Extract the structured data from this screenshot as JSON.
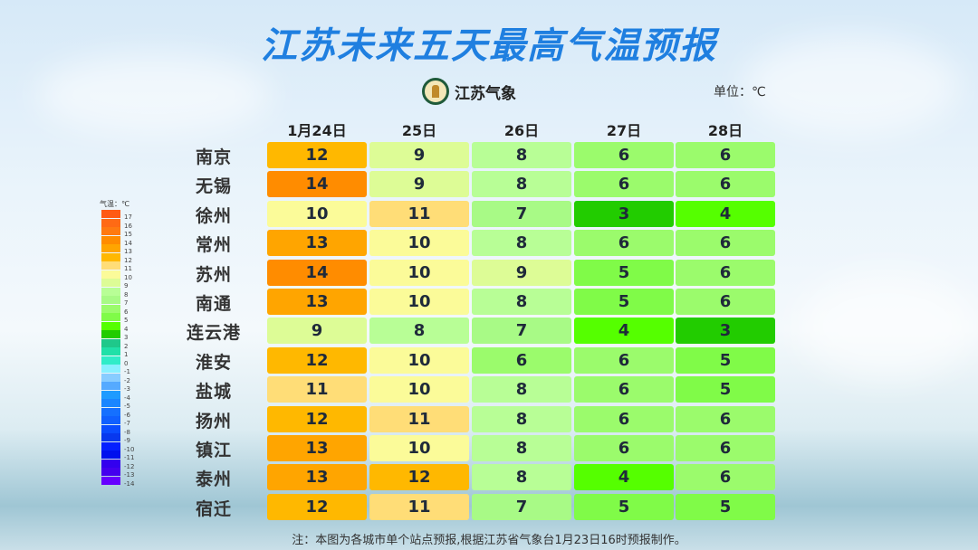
{
  "title": "江苏未来五天最高气温预报",
  "logo_text": "江苏气象",
  "unit": "单位：℃",
  "headers": [
    "1月24日",
    "25日",
    "26日",
    "27日",
    "28日"
  ],
  "rows": [
    {
      "city": "南京",
      "values": [
        12,
        9,
        8,
        6,
        6
      ]
    },
    {
      "city": "无锡",
      "values": [
        14,
        9,
        8,
        6,
        6
      ]
    },
    {
      "city": "徐州",
      "values": [
        10,
        11,
        7,
        3,
        4
      ]
    },
    {
      "city": "常州",
      "values": [
        13,
        10,
        8,
        6,
        6
      ]
    },
    {
      "city": "苏州",
      "values": [
        14,
        10,
        9,
        5,
        6
      ]
    },
    {
      "city": "南通",
      "values": [
        13,
        10,
        8,
        5,
        6
      ]
    },
    {
      "city": "连云港",
      "values": [
        9,
        8,
        7,
        4,
        3
      ]
    },
    {
      "city": "淮安",
      "values": [
        12,
        10,
        6,
        6,
        5
      ]
    },
    {
      "city": "盐城",
      "values": [
        11,
        10,
        8,
        6,
        5
      ]
    },
    {
      "city": "扬州",
      "values": [
        12,
        11,
        8,
        6,
        6
      ]
    },
    {
      "city": "镇江",
      "values": [
        13,
        10,
        8,
        6,
        6
      ]
    },
    {
      "city": "泰州",
      "values": [
        13,
        12,
        8,
        4,
        6
      ]
    },
    {
      "city": "宿迁",
      "values": [
        12,
        11,
        7,
        5,
        5
      ]
    }
  ],
  "legend": {
    "title": "气温：℃",
    "items": [
      {
        "value": 17,
        "color": "#ff5a14"
      },
      {
        "value": 16,
        "color": "#ff6a14"
      },
      {
        "value": 15,
        "color": "#ff7a10"
      },
      {
        "value": 14,
        "color": "#ff8c00"
      },
      {
        "value": 13,
        "color": "#ffa500"
      },
      {
        "value": 12,
        "color": "#ffb800"
      },
      {
        "value": 11,
        "color": "#ffdd77"
      },
      {
        "value": 10,
        "color": "#fbfb99"
      },
      {
        "value": 9,
        "color": "#ddfc96"
      },
      {
        "value": 8,
        "color": "#b8fe96"
      },
      {
        "value": 7,
        "color": "#a8fa86"
      },
      {
        "value": 6,
        "color": "#9bfb6c"
      },
      {
        "value": 5,
        "color": "#80fb48"
      },
      {
        "value": 4,
        "color": "#55ff00"
      },
      {
        "value": 3,
        "color": "#22cc00"
      },
      {
        "value": 2,
        "color": "#1fc88a"
      },
      {
        "value": 1,
        "color": "#20e0a8"
      },
      {
        "value": 0,
        "color": "#30ecc8"
      },
      {
        "value": -1,
        "color": "#88f0ff"
      },
      {
        "value": -2,
        "color": "#88ccff"
      },
      {
        "value": -3,
        "color": "#55aaff"
      },
      {
        "value": -4,
        "color": "#1e9bff"
      },
      {
        "value": -5,
        "color": "#1a86ff"
      },
      {
        "value": -6,
        "color": "#1570ff"
      },
      {
        "value": -7,
        "color": "#1060ff"
      },
      {
        "value": -8,
        "color": "#0a4cff"
      },
      {
        "value": -9,
        "color": "#0838ee"
      },
      {
        "value": -10,
        "color": "#0520ff"
      },
      {
        "value": -11,
        "color": "#0010ee"
      },
      {
        "value": -12,
        "color": "#3300ee"
      },
      {
        "value": -13,
        "color": "#4400ee"
      },
      {
        "value": -14,
        "color": "#6600ff"
      }
    ]
  },
  "footnote": "注：本图为各城市单个站点预报,根据江苏省气象台1月23日16时预报制作。"
}
